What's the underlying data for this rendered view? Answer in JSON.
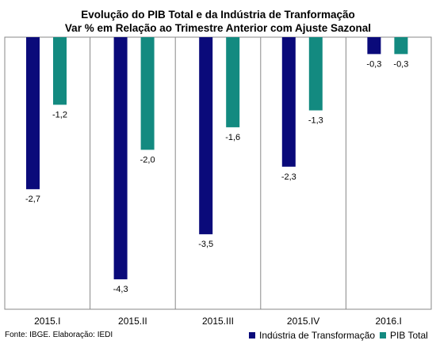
{
  "chart_data": {
    "type": "bar",
    "title": "Evolução do PIB Total e da Indústria de Tranformação",
    "subtitle": "Var % em Relação ao Trimestre Anterior com Ajuste Sazonal",
    "categories": [
      "2015.I",
      "2015.II",
      "2015.III",
      "2015.IV",
      "2016.I"
    ],
    "series": [
      {
        "name": "Indústria de Transformação",
        "color": "#0a0a7a",
        "values": [
          -2.7,
          -4.3,
          -3.5,
          -2.3,
          -0.3
        ],
        "labels": [
          "-2,7",
          "-4,3",
          "-3,5",
          "-2,3",
          "-0,3"
        ]
      },
      {
        "name": "PIB Total",
        "color": "#138a80",
        "values": [
          -1.2,
          -2.0,
          -1.6,
          -1.3,
          -0.3
        ],
        "labels": [
          "-1,2",
          "-2,0",
          "-1,6",
          "-1,3",
          "-0,3"
        ]
      }
    ],
    "ylim": [
      -4.6,
      0
    ],
    "grid": false,
    "legend": "bottom-right",
    "source": "Fonte: IBGE. Elaboração: IEDI"
  }
}
